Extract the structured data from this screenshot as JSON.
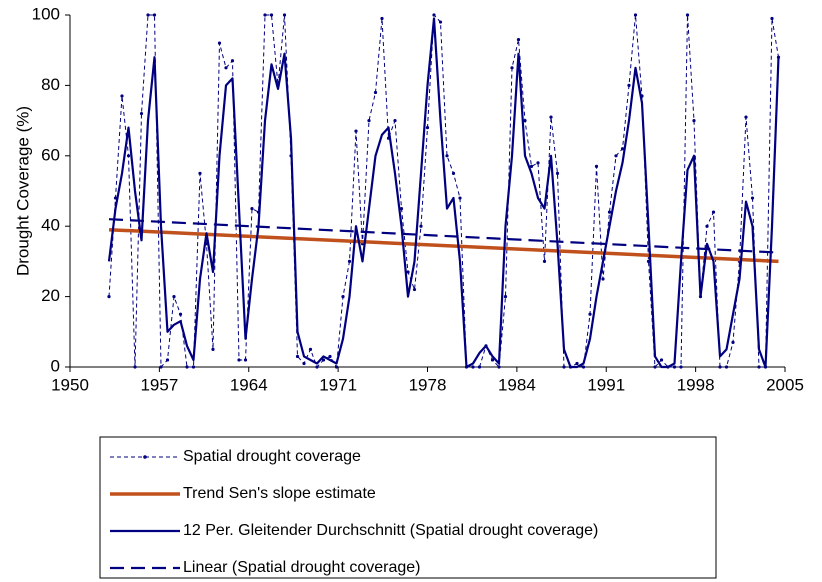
{
  "chart_data": {
    "type": "line",
    "y_label": "Drought Coverage (%)",
    "xlim": [
      1950,
      2005
    ],
    "xticks": [
      {
        "value": 1950,
        "label": "1950"
      },
      {
        "value": 1956.875,
        "label": "1957"
      },
      {
        "value": 1963.75,
        "label": "1964"
      },
      {
        "value": 1970.625,
        "label": "1971"
      },
      {
        "value": 1977.5,
        "label": "1978"
      },
      {
        "value": 1984.375,
        "label": "1984"
      },
      {
        "value": 1991.25,
        "label": "1991"
      },
      {
        "value": 1998.125,
        "label": "1998"
      },
      {
        "value": 2005,
        "label": "2005"
      }
    ],
    "ylim": [
      0,
      100
    ],
    "yticks": [
      0,
      20,
      40,
      60,
      80,
      100
    ],
    "grid": false,
    "x": [
      1953,
      1953.5,
      1954,
      1954.5,
      1955,
      1955.5,
      1956,
      1956.5,
      1957,
      1957.5,
      1958,
      1958.5,
      1959,
      1959.5,
      1960,
      1960.5,
      1961,
      1961.5,
      1962,
      1962.5,
      1963,
      1963.5,
      1964,
      1964.5,
      1965,
      1965.5,
      1966,
      1966.5,
      1967,
      1967.5,
      1968,
      1968.5,
      1969,
      1969.5,
      1970,
      1970.5,
      1971,
      1971.5,
      1972,
      1972.5,
      1973,
      1973.5,
      1974,
      1974.5,
      1975,
      1975.5,
      1976,
      1976.5,
      1977,
      1977.5,
      1978,
      1978.5,
      1979,
      1979.5,
      1980,
      1980.5,
      1981,
      1981.5,
      1982,
      1982.5,
      1983,
      1983.5,
      1984,
      1984.5,
      1985,
      1985.5,
      1986,
      1986.5,
      1987,
      1987.5,
      1988,
      1988.5,
      1989,
      1989.5,
      1990,
      1990.5,
      1991,
      1991.5,
      1992,
      1992.5,
      1993,
      1993.5,
      1994,
      1994.5,
      1995,
      1995.5,
      1996,
      1996.5,
      1997,
      1997.5,
      1998,
      1998.5,
      1999,
      1999.5,
      2000,
      2000.5,
      2001,
      2001.5,
      2002,
      2002.5,
      2003,
      2003.5,
      2004,
      2004.5
    ],
    "series": [
      {
        "name": "Spatial drought coverage",
        "color": "#000080",
        "values": [
          20,
          48,
          77,
          60,
          0,
          72,
          100,
          100,
          0,
          2,
          20,
          15,
          0,
          0,
          55,
          35,
          5,
          92,
          85,
          87,
          2,
          2,
          45,
          44,
          100,
          100,
          80,
          100,
          60,
          3,
          1,
          5,
          0,
          2,
          3,
          0,
          20,
          30,
          67,
          35,
          70,
          78,
          99,
          65,
          70,
          45,
          27,
          22,
          40,
          68,
          100,
          98,
          60,
          55,
          48,
          0,
          0,
          0,
          6,
          2,
          0,
          20,
          85,
          93,
          70,
          57,
          58,
          30,
          71,
          55,
          0,
          0,
          1,
          0,
          15,
          57,
          25,
          44,
          60,
          62,
          80,
          100,
          77,
          30,
          0,
          2,
          0,
          0,
          0,
          100,
          70,
          20,
          40,
          44,
          0,
          0,
          7,
          30,
          71,
          48,
          0,
          0,
          99,
          88
        ]
      },
      {
        "name": "Trend Sen's slope estimate",
        "color": "#c0501c",
        "x": [
          1953,
          2004.5
        ],
        "values": [
          39,
          30
        ]
      },
      {
        "name": "12 Per. Gleitender Durchschnitt (Spatial drought coverage)",
        "color": "#000080",
        "values": [
          30,
          45,
          55,
          68,
          50,
          36,
          70,
          88,
          40,
          10,
          12,
          13,
          6,
          2,
          25,
          38,
          27,
          60,
          80,
          82,
          45,
          8,
          25,
          40,
          70,
          86,
          79,
          89,
          65,
          10,
          3,
          2,
          1,
          3,
          2,
          1,
          8,
          20,
          40,
          30,
          45,
          60,
          66,
          68,
          55,
          40,
          20,
          30,
          55,
          80,
          99,
          70,
          45,
          48,
          30,
          0,
          1,
          4,
          6,
          3,
          1,
          40,
          60,
          89,
          60,
          55,
          48,
          45,
          60,
          35,
          5,
          0,
          0,
          1,
          8,
          20,
          30,
          40,
          50,
          58,
          70,
          85,
          75,
          40,
          3,
          0,
          0,
          1,
          30,
          56,
          60,
          20,
          35,
          30,
          3,
          5,
          15,
          25,
          47,
          40,
          5,
          0,
          40,
          88
        ]
      },
      {
        "name": "Linear (Spatial drought coverage)",
        "color": "#000080",
        "x": [
          1953,
          2004.5
        ],
        "values": [
          42,
          32.5
        ]
      }
    ]
  }
}
